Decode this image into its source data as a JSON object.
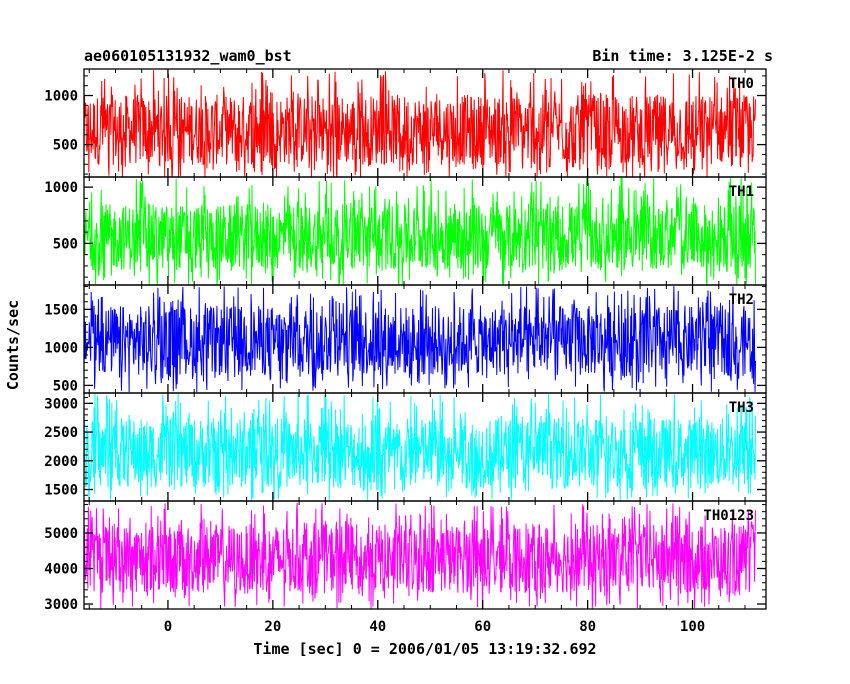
{
  "title": "ae060105131932_wam0_bst",
  "bin_time": "Bin time: 3.125E-2 s",
  "chart_data": {
    "type": "line",
    "title": "ae060105131932_wam0_bst",
    "subtitle": "Bin time: 3.125E-2 s",
    "xlabel": "Time [sec] 0 = 2006/01/05 13:19:32.692",
    "ylabel": "Counts/sec",
    "xlim": [
      -16,
      114
    ],
    "x_range_of_data": [
      -16,
      112
    ],
    "x_ticks": [
      0,
      20,
      40,
      60,
      80,
      100
    ],
    "grid": false,
    "legend": "none",
    "panels": [
      {
        "name": "TH0",
        "color": "#ff0000",
        "ylim": [
          170,
          1270
        ],
        "y_ticks": [
          500,
          1000
        ],
        "band_low": 290,
        "band_high": 1010,
        "min_value": 150,
        "max_value": 1260,
        "mean_value": 650
      },
      {
        "name": "TH1",
        "color": "#00ff00",
        "ylim": [
          130,
          1090
        ],
        "y_ticks": [
          500,
          1000
        ],
        "band_low": 260,
        "band_high": 850,
        "min_value": 110,
        "max_value": 1090,
        "mean_value": 550
      },
      {
        "name": "TH2",
        "color": "#0000ff",
        "ylim": [
          400,
          1820
        ],
        "y_ticks": [
          500,
          1000,
          1500
        ],
        "band_low": 620,
        "band_high": 1550,
        "min_value": 410,
        "max_value": 1810,
        "mean_value": 1080
      },
      {
        "name": "TH3",
        "color": "#00ffff",
        "ylim": [
          1300,
          3180
        ],
        "y_ticks": [
          1500,
          2000,
          2500,
          3000
        ],
        "band_low": 1520,
        "band_high": 2750,
        "min_value": 1300,
        "max_value": 3180,
        "mean_value": 2200
      },
      {
        "name": "TH0123",
        "color": "#ff00ff",
        "ylim": [
          2860,
          5900
        ],
        "y_ticks": [
          3000,
          4000,
          5000
        ],
        "band_low": 3300,
        "band_high": 5250,
        "min_value": 2860,
        "max_value": 5850,
        "mean_value": 4300
      }
    ]
  }
}
